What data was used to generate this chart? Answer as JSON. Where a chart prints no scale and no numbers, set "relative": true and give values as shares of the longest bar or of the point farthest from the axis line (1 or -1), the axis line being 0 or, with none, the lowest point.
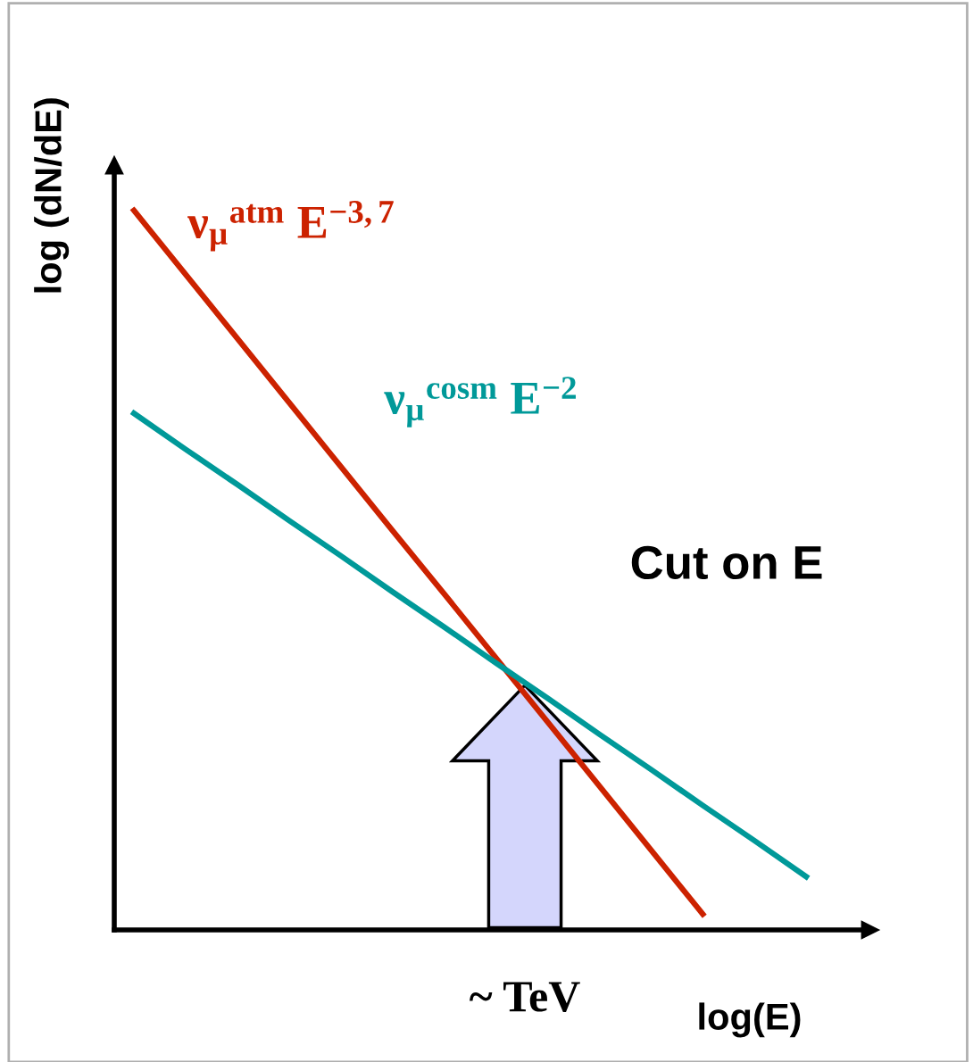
{
  "chart_data": {
    "type": "line",
    "relative": true,
    "xlabel": "log(E)",
    "ylabel": "log (dN/dE)",
    "categories": [
      null,
      null,
      null,
      null,
      null,
      null,
      null,
      null,
      null,
      null,
      null,
      null,
      null,
      null
    ],
    "series": [
      {
        "name": "ν$_{μ}$$^{atm}$ E$^{−3,7}$",
        "color": "#cc2200",
        "values": [
          1,
          0.911,
          0.822,
          0.733,
          0.644,
          0.555,
          0.467,
          0.378,
          0.289,
          0.2,
          0.111,
          0.022,
          null,
          null
        ]
      },
      {
        "name": "ν$_{μ}$$^{cosm}$ E$^{−2}$",
        "color": "#009999",
        "values": [
          0.718,
          0.668,
          0.619,
          0.569,
          0.52,
          0.47,
          0.421,
          0.371,
          0.322,
          0.272,
          0.223,
          0.173,
          0.124,
          0.074
        ]
      }
    ],
    "annotations": [
      "Cut on E",
      "~ TeV"
    ],
    "marker": "none",
    "line_style": "solid"
  }
}
